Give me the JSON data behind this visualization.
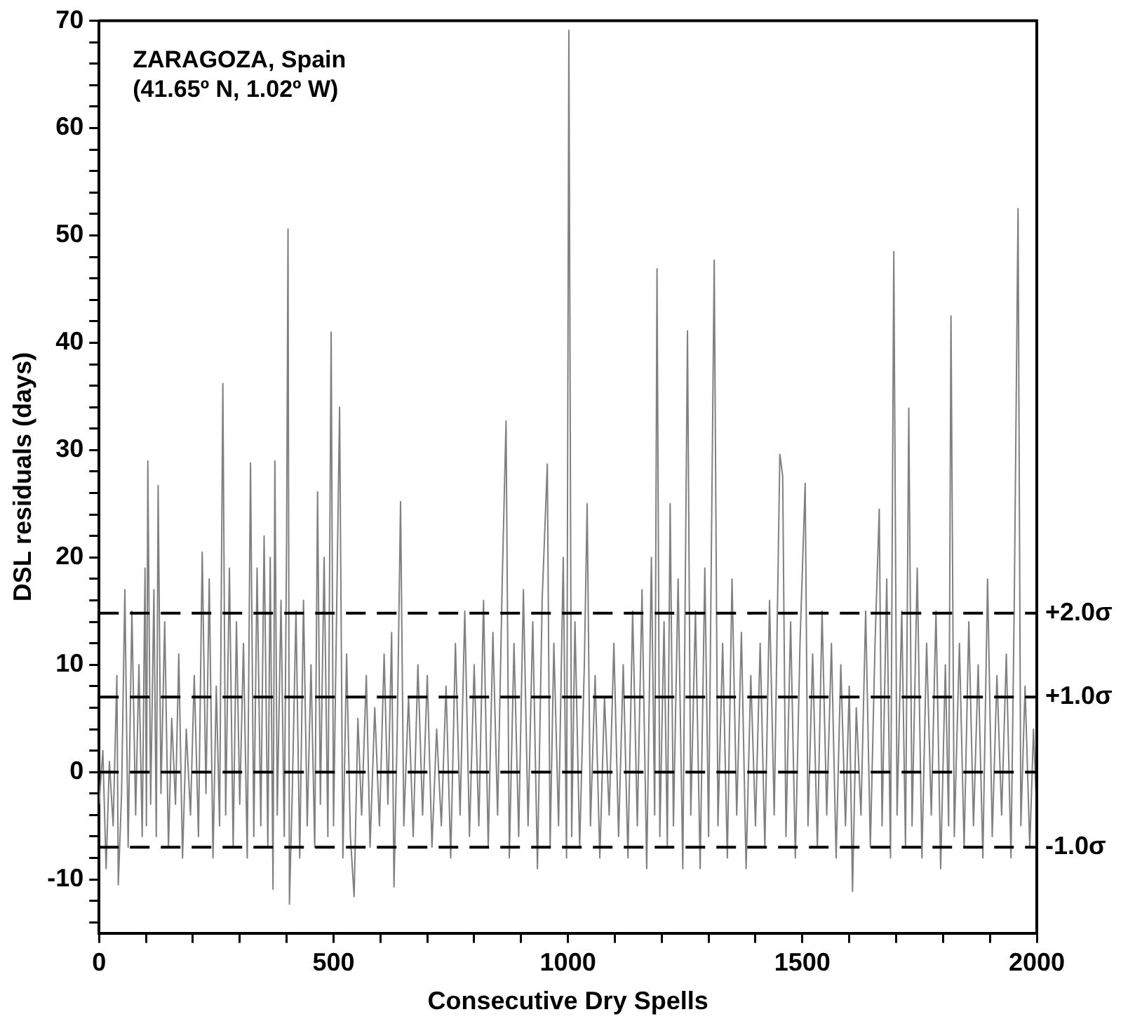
{
  "chart_data": {
    "type": "line",
    "xlabel": "Consecutive Dry Spells",
    "ylabel": "DSL residuals (days)",
    "annotations": [
      "ZARAGOZA, Spain",
      "(41.65º N, 1.02º W)"
    ],
    "xlim": [
      0,
      2000
    ],
    "ylim": [
      -15,
      70
    ],
    "xticks": [
      0,
      {
        "value": 100,
        "label": null
      },
      {
        "value": 200,
        "label": null
      },
      {
        "value": 300,
        "label": null
      },
      {
        "value": 400,
        "label": null
      },
      500,
      {
        "value": 600,
        "label": null
      },
      {
        "value": 700,
        "label": null
      },
      {
        "value": 800,
        "label": null
      },
      {
        "value": 900,
        "label": null
      },
      1000,
      {
        "value": 1100,
        "label": null
      },
      {
        "value": 1200,
        "label": null
      },
      {
        "value": 1300,
        "label": null
      },
      {
        "value": 1400,
        "label": null
      },
      1500,
      {
        "value": 1600,
        "label": null
      },
      {
        "value": 1700,
        "label": null
      },
      {
        "value": 1800,
        "label": null
      },
      {
        "value": 1900,
        "label": null
      },
      2000
    ],
    "yticks": [
      {
        "value": -14,
        "label": null
      },
      {
        "value": -12,
        "label": null
      },
      -10,
      {
        "value": -8,
        "label": null
      },
      {
        "value": -6,
        "label": null
      },
      {
        "value": -4,
        "label": null
      },
      {
        "value": -2,
        "label": null
      },
      0,
      {
        "value": 2,
        "label": null
      },
      {
        "value": 4,
        "label": null
      },
      {
        "value": 6,
        "label": null
      },
      {
        "value": 8,
        "label": null
      },
      10,
      {
        "value": 12,
        "label": null
      },
      {
        "value": 14,
        "label": null
      },
      {
        "value": 16,
        "label": null
      },
      {
        "value": 18,
        "label": null
      },
      20,
      {
        "value": 22,
        "label": null
      },
      {
        "value": 24,
        "label": null
      },
      {
        "value": 26,
        "label": null
      },
      {
        "value": 28,
        "label": null
      },
      30,
      {
        "value": 32,
        "label": null
      },
      {
        "value": 34,
        "label": null
      },
      {
        "value": 36,
        "label": null
      },
      {
        "value": 38,
        "label": null
      },
      40,
      {
        "value": 42,
        "label": null
      },
      {
        "value": 44,
        "label": null
      },
      {
        "value": 46,
        "label": null
      },
      {
        "value": 48,
        "label": null
      },
      50,
      {
        "value": 52,
        "label": null
      },
      {
        "value": 54,
        "label": null
      },
      {
        "value": 56,
        "label": null
      },
      {
        "value": 58,
        "label": null
      },
      60,
      {
        "value": 62,
        "label": null
      },
      {
        "value": 64,
        "label": null
      },
      {
        "value": 66,
        "label": null
      },
      {
        "value": 68,
        "label": null
      },
      70
    ],
    "grid": false,
    "legend": false,
    "marker": "none",
    "line_style": "solid",
    "ref_lines": [
      {
        "axis": "y",
        "value": 14.8,
        "label": "+2.0σ",
        "color": "#000000",
        "line_style": "dashed"
      },
      {
        "axis": "y",
        "value": 7,
        "label": "+1.0σ",
        "color": "#000000",
        "line_style": "dashed"
      },
      {
        "axis": "y",
        "value": 0,
        "color": "#000000",
        "line_style": "dashed"
      },
      {
        "axis": "y",
        "value": -7,
        "label": "-1.0σ",
        "color": "#000000",
        "line_style": "dashed"
      }
    ],
    "series": [
      {
        "color": "#808080",
        "x": [
          0,
          8,
          15,
          22,
          30,
          38,
          41,
          48,
          55,
          62,
          70,
          78,
          85,
          92,
          98,
          101,
          104,
          110,
          117,
          122,
          126,
          132,
          140,
          148,
          155,
          163,
          170,
          178,
          186,
          195,
          203,
          212,
          220,
          228,
          235,
          243,
          250,
          257,
          264,
          270,
          278,
          286,
          293,
          300,
          308,
          316,
          323,
          330,
          337,
          345,
          352,
          360,
          365,
          371,
          375,
          380,
          388,
          395,
          400,
          403,
          406,
          412,
          420,
          428,
          436,
          444,
          452,
          460,
          466,
          472,
          480,
          488,
          495,
          500,
          507,
          513,
          520,
          528,
          536,
          544,
          552,
          560,
          570,
          578,
          588,
          598,
          608,
          616,
          624,
          629,
          636,
          643,
          650,
          660,
          670,
          680,
          690,
          700,
          710,
          720,
          730,
          740,
          750,
          760,
          770,
          780,
          790,
          800,
          810,
          820,
          830,
          840,
          850,
          860,
          868,
          875,
          885,
          895,
          905,
          915,
          925,
          935,
          945,
          956,
          962,
          970,
          980,
          990,
          997,
          1002,
          1008,
          1015,
          1025,
          1035,
          1041,
          1048,
          1058,
          1068,
          1078,
          1088,
          1098,
          1108,
          1118,
          1128,
          1138,
          1148,
          1158,
          1168,
          1178,
          1185,
          1190,
          1196,
          1205,
          1212,
          1218,
          1225,
          1235,
          1245,
          1255,
          1262,
          1272,
          1282,
          1292,
          1300,
          1312,
          1320,
          1330,
          1340,
          1350,
          1360,
          1370,
          1380,
          1390,
          1400,
          1410,
          1420,
          1430,
          1440,
          1452,
          1458,
          1465,
          1475,
          1485,
          1495,
          1506,
          1512,
          1522,
          1532,
          1542,
          1552,
          1562,
          1572,
          1582,
          1592,
          1600,
          1607,
          1615,
          1625,
          1635,
          1645,
          1655,
          1664,
          1670,
          1680,
          1688,
          1695,
          1702,
          1712,
          1720,
          1727,
          1734,
          1745,
          1755,
          1765,
          1775,
          1785,
          1795,
          1805,
          1812,
          1817,
          1824,
          1835,
          1845,
          1855,
          1865,
          1875,
          1885,
          1895,
          1905,
          1915,
          1925,
          1935,
          1945,
          1952,
          1960,
          1966,
          1975,
          1985,
          1993,
          2000
        ],
        "values": [
          -3,
          2,
          -9,
          1,
          -5,
          9,
          -10.5,
          -2,
          17,
          -7,
          15,
          -4,
          10,
          -6,
          19,
          -5,
          29,
          -3,
          17,
          -6,
          26.7,
          -2,
          14,
          -7,
          5,
          -3,
          11,
          -8,
          4,
          -4,
          9,
          -6,
          20.5,
          -2,
          18,
          -8,
          8,
          -5,
          36.2,
          -4,
          19,
          -7,
          14,
          -3,
          12,
          -8,
          28.8,
          -6,
          19,
          -5,
          22,
          -7,
          20,
          -10.9,
          29,
          -4,
          16,
          -6,
          22,
          50.6,
          -12.3,
          -2,
          15,
          -8,
          16,
          -5,
          10,
          -7,
          26.1,
          -3,
          20,
          -6,
          41,
          -5,
          16,
          34,
          -8,
          11,
          -6,
          -11.6,
          5,
          -4,
          9,
          -7,
          6,
          -5,
          11,
          -3,
          13,
          -10.7,
          4,
          25.2,
          -5,
          7,
          -6,
          10,
          -4,
          9,
          -7,
          4,
          -5,
          8,
          -8,
          12,
          -4,
          15,
          -6,
          10,
          -5,
          16,
          -7,
          13,
          -4,
          18,
          32.7,
          -8,
          12,
          -6,
          17,
          -5,
          14,
          -9,
          16,
          28.7,
          -7,
          12,
          -5,
          20,
          -8,
          69.1,
          -6,
          14,
          -7,
          10,
          25,
          -5,
          9,
          -8,
          7,
          -4,
          12,
          -6,
          10,
          -8,
          15,
          -5,
          17,
          -9,
          20,
          -4,
          46.9,
          -6,
          14,
          -7,
          25,
          -5,
          18,
          -9,
          41.1,
          -4,
          15,
          -9,
          19,
          -6,
          47.7,
          -5,
          12,
          -8,
          18,
          -4,
          13,
          -9,
          9,
          -5,
          12,
          -7,
          16,
          -4,
          29.6,
          27.6,
          -6,
          14,
          -8,
          12,
          26.9,
          -5,
          11,
          -7,
          15,
          -4,
          12,
          -8,
          10,
          -5,
          8,
          -11.1,
          6,
          -4,
          15,
          -7,
          12,
          24.5,
          -5,
          18,
          -8,
          48.5,
          -4,
          15,
          -7,
          33.9,
          -5,
          19,
          -8,
          12,
          -4,
          15,
          -9,
          10,
          -5,
          42.5,
          -6,
          12,
          -7,
          14,
          -5,
          10,
          -8,
          18,
          -6,
          9,
          -4,
          11,
          -8,
          16,
          52.5,
          -5,
          8,
          -7,
          4,
          -4
        ]
      }
    ]
  }
}
